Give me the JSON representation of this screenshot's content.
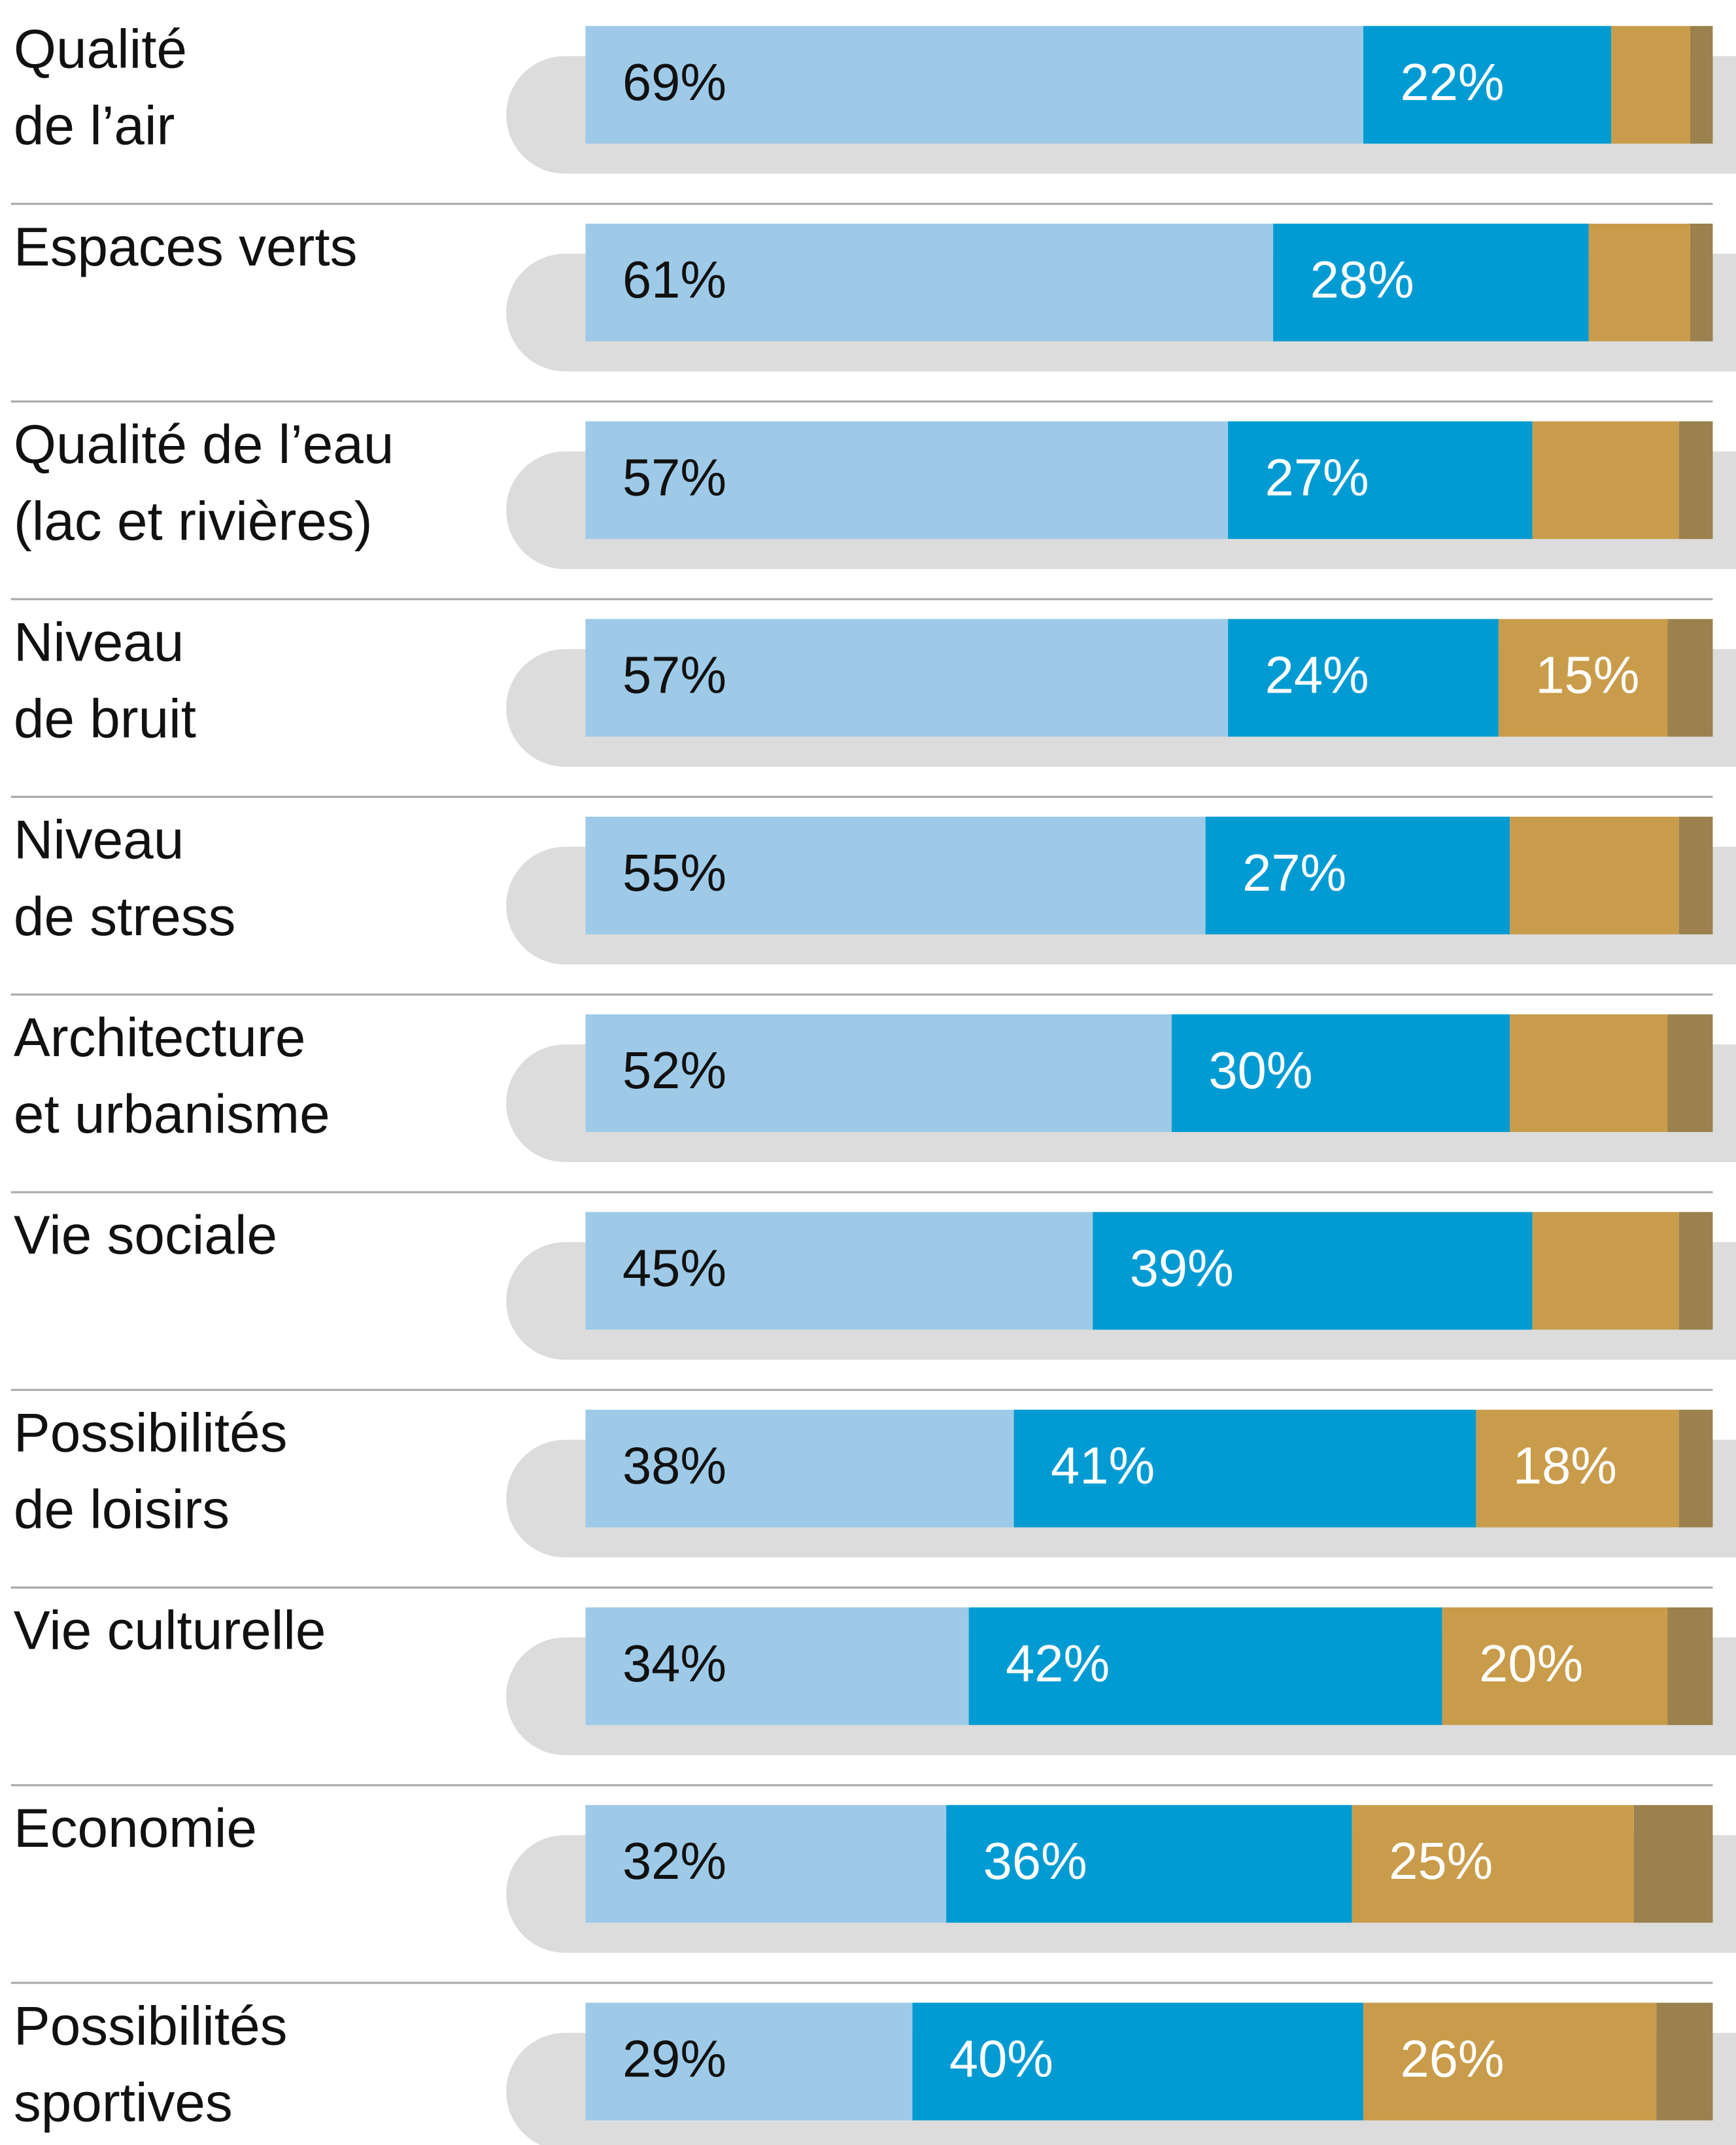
{
  "chart_data": {
    "type": "stacked-bar-horizontal",
    "categories": [
      "Qualité\nde l’air",
      "Espaces verts",
      "Qualité de l’eau\n(lac et rivières)",
      "Niveau\nde bruit",
      "Niveau\nde stress",
      "Architecture\net urbanisme",
      "Vie sociale",
      "Possibilités\nde loisirs",
      "Vie culturelle",
      "Economie",
      "Possibilités\nsportives"
    ],
    "xlim": [
      0,
      100
    ],
    "series": [
      {
        "color": "#9ecae8",
        "values": [
          69,
          61,
          57,
          57,
          55,
          52,
          45,
          38,
          34,
          32,
          29
        ],
        "value_labels": [
          "69%",
          "61%",
          "57%",
          "57%",
          "55%",
          "52%",
          "45%",
          "38%",
          "34%",
          "32%",
          "29%"
        ]
      },
      {
        "color": "#009bd3",
        "values": [
          22,
          28,
          27,
          24,
          27,
          30,
          39,
          41,
          42,
          36,
          40
        ],
        "value_labels": [
          "22%",
          "28%",
          "27%",
          "24%",
          "27%",
          "30%",
          "39%",
          "41%",
          "42%",
          "36%",
          "40%"
        ]
      },
      {
        "color": "#c89c4b",
        "values": [
          7,
          9,
          13,
          15,
          15,
          14,
          13,
          18,
          20,
          25,
          26
        ],
        "value_labels": [
          null,
          null,
          null,
          "15%",
          null,
          null,
          null,
          "18%",
          "20%",
          "25%",
          "26%"
        ]
      },
      {
        "color": "#9a814d",
        "values": [
          2,
          2,
          3,
          4,
          3,
          4,
          3,
          3,
          4,
          7,
          5
        ]
      }
    ]
  }
}
